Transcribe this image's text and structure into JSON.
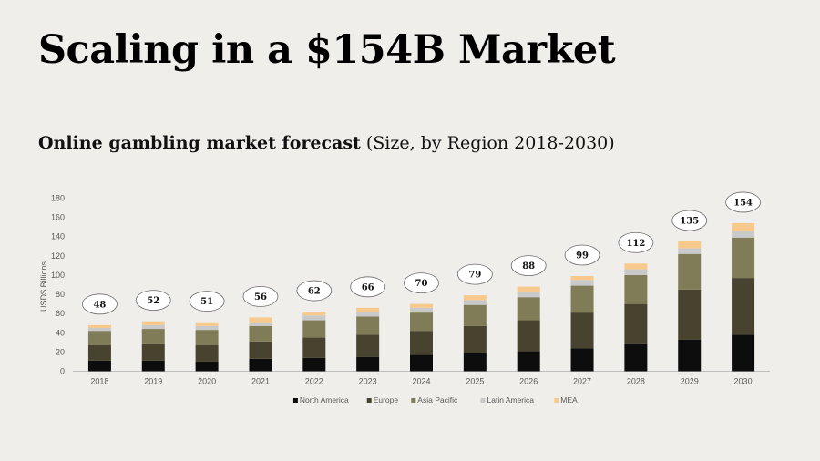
{
  "slide": {
    "title": "Scaling in a $154B Market",
    "subtitle_bold": "Online gambling market forecast",
    "subtitle_rest": " (Size, by Region 2018-2030)"
  },
  "chart_data": {
    "type": "bar",
    "stacked": true,
    "categories": [
      "2018",
      "2019",
      "2020",
      "2021",
      "2022",
      "2023",
      "2024",
      "2025",
      "2026",
      "2027",
      "2028",
      "2029",
      "2030"
    ],
    "series": [
      {
        "name": "North America",
        "color": "#0d0d0d",
        "values": [
          11,
          11,
          10,
          13,
          14,
          15,
          17,
          19,
          21,
          24,
          28,
          33,
          38
        ]
      },
      {
        "name": "Europe",
        "color": "#47432f",
        "values": [
          16,
          17,
          17,
          18,
          21,
          23,
          25,
          28,
          32,
          37,
          42,
          52,
          59
        ]
      },
      {
        "name": "Asia Pacific",
        "color": "#807c58",
        "values": [
          15,
          16,
          16,
          16,
          18,
          19,
          19,
          22,
          24,
          28,
          30,
          37,
          42
        ]
      },
      {
        "name": "Latin America",
        "color": "#c9c9c9",
        "values": [
          3,
          4,
          4,
          4,
          5,
          5,
          5,
          5,
          6,
          6,
          6,
          6,
          7
        ]
      },
      {
        "name": "MEA",
        "color": "#f7c98c",
        "values": [
          3,
          4,
          4,
          5,
          4,
          4,
          4,
          5,
          5,
          4,
          6,
          7,
          8
        ]
      }
    ],
    "totals": [
      48,
      52,
      51,
      56,
      62,
      66,
      70,
      79,
      88,
      99,
      112,
      135,
      154
    ],
    "ylabel": "USD$ Billions",
    "ylim": [
      0,
      180
    ],
    "yticks": [
      0,
      20,
      40,
      60,
      80,
      100,
      120,
      140,
      160,
      180
    ],
    "grid": false,
    "legend": "bottom"
  }
}
